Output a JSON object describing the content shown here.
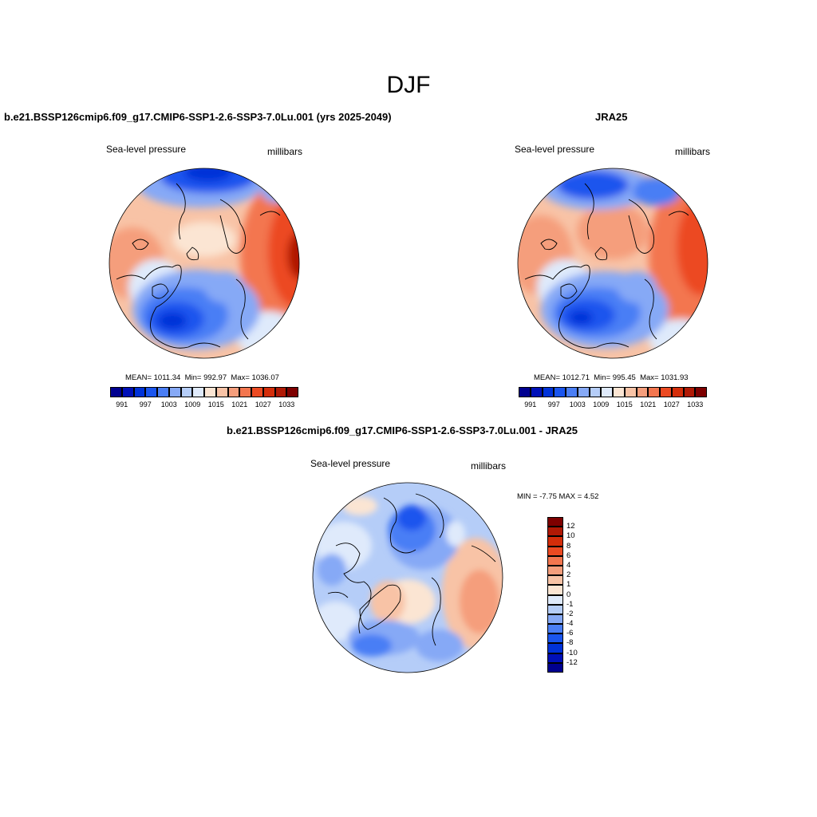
{
  "page": {
    "title": "DJF"
  },
  "panels": [
    {
      "id": "model",
      "title": "b.e21.BSSP126cmip6.f09_g17.CMIP6-SSP1-2.6-SSP3-7.0Lu.001 (yrs 2025-2049)",
      "left_label": "Sea-level pressure",
      "right_label": "millibars",
      "stats": {
        "mean_label": "MEAN=",
        "mean": "1011.34",
        "min_label": "Min=",
        "min": "992.97",
        "max_label": "Max=",
        "max": "1036.07"
      },
      "colorbar_labels": [
        "991",
        "997",
        "1003",
        "1009",
        "1015",
        "1021",
        "1027",
        "1033"
      ]
    },
    {
      "id": "obs",
      "title": "JRA25",
      "left_label": "Sea-level pressure",
      "right_label": "millibars",
      "stats": {
        "mean_label": "MEAN=",
        "mean": "1012.71",
        "min_label": "Min=",
        "min": "995.45",
        "max_label": "Max=",
        "max": "1031.93"
      },
      "colorbar_labels": [
        "991",
        "997",
        "1003",
        "1009",
        "1015",
        "1021",
        "1027",
        "1033"
      ]
    },
    {
      "id": "diff",
      "title": "b.e21.BSSP126cmip6.f09_g17.CMIP6-SSP1-2.6-SSP3-7.0Lu.001 - JRA25",
      "left_label": "Sea-level pressure",
      "right_label": "millibars",
      "stats_text": "MIN =  -7.75 MAX =   4.52",
      "colorbar_labels": [
        "12",
        "10",
        "8",
        "6",
        "4",
        "2",
        "1",
        "0",
        "-1",
        "-2",
        "-4",
        "-6",
        "-8",
        "-10",
        "-12"
      ]
    }
  ],
  "colors": {
    "abs_scale": [
      "#00008f",
      "#0010b8",
      "#0032d8",
      "#1a55ee",
      "#4a7ef5",
      "#86a9f6",
      "#b5cdf8",
      "#dfeafb",
      "#fbe5d3",
      "#f8c3a6",
      "#f59e7c",
      "#f3764f",
      "#ec4a22",
      "#d42d0a",
      "#b01905",
      "#7e0000"
    ],
    "diff_scale": [
      "#7e0000",
      "#b01905",
      "#d42d0a",
      "#ec4a22",
      "#f3764f",
      "#f59e7c",
      "#f8c3a6",
      "#fbe5d3",
      "#dfeafb",
      "#b5cdf8",
      "#86a9f6",
      "#4a7ef5",
      "#1a55ee",
      "#0032d8",
      "#0010b8",
      "#00008f"
    ]
  }
}
